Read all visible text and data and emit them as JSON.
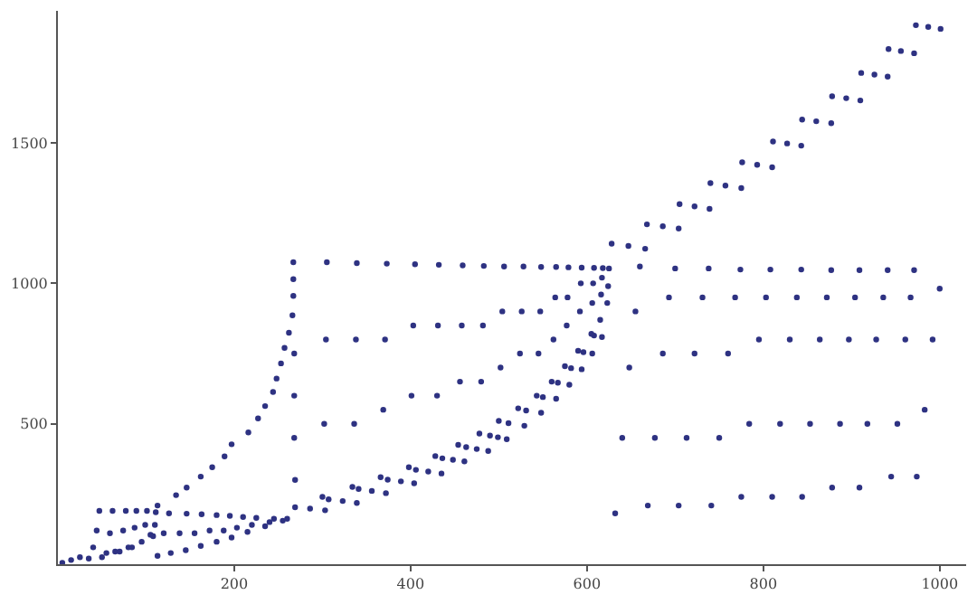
{
  "chart_data": {
    "type": "scatter",
    "marker": "circle",
    "xlim": [
      0,
      1030
    ],
    "ylim": [
      0,
      1970
    ],
    "xticks": [
      200,
      400,
      600,
      800,
      1000
    ],
    "yticks": [
      500,
      1000,
      1500
    ],
    "series": [
      {
        "color": "#2e3282",
        "x": [
          628,
          647,
          666,
          668,
          686,
          704,
          705,
          722,
          739,
          740,
          757,
          775,
          776,
          793,
          810,
          811,
          827,
          843,
          844,
          860,
          877,
          878,
          894,
          910,
          911,
          926,
          941,
          942,
          956,
          971,
          973,
          987,
          1001
        ],
        "values": [
          1141,
          1133,
          1123,
          1210,
          1203,
          1195,
          1282,
          1274,
          1265,
          1357,
          1348,
          1339,
          1431,
          1422,
          1413,
          1505,
          1498,
          1490,
          1583,
          1577,
          1570,
          1666,
          1659,
          1651,
          1749,
          1743,
          1736,
          1834,
          1827,
          1819,
          1919,
          1913,
          1906
        ]
      },
      {
        "color": "#2e3282",
        "x": [
          269,
          286,
          303,
          307,
          323,
          339,
          341,
          356,
          372,
          374,
          389,
          404,
          406,
          420,
          435,
          436,
          448,
          461,
          463,
          475,
          488,
          490,
          499,
          509,
          511,
          529,
          531,
          548,
          550,
          565,
          567,
          580,
          582,
          594,
          596,
          606,
          608,
          617
        ],
        "values": [
          203,
          198,
          192,
          231,
          225,
          218,
          268,
          261,
          253,
          301,
          295,
          288,
          336,
          330,
          323,
          377,
          372,
          366,
          417,
          410,
          403,
          458,
          452,
          445,
          502,
          493,
          547,
          539,
          595,
          589,
          646,
          639,
          698,
          694,
          755,
          750,
          814,
          809
        ]
      },
      {
        "color": "#2e3282",
        "x": [
          5,
          15,
          25,
          35,
          50,
          65,
          80,
          95,
          105,
          110,
          113,
          134,
          146,
          162,
          175,
          189,
          197,
          216,
          227,
          235,
          244,
          248,
          253,
          257,
          262,
          266,
          267,
          267,
          267
        ],
        "values": [
          5,
          15,
          25,
          20,
          25,
          45,
          60,
          80,
          105,
          140,
          209,
          246,
          273,
          312,
          345,
          384,
          427,
          469,
          519,
          563,
          613,
          661,
          715,
          770,
          824,
          886,
          955,
          1015,
          1075
        ]
      },
      {
        "color": "#2e3282",
        "x": [
          269,
          268,
          268,
          268,
          300,
          302,
          304,
          305,
          334,
          336,
          338,
          339,
          366,
          369,
          371,
          373,
          398,
          401,
          403,
          405,
          428,
          430,
          431,
          432,
          454,
          456,
          458,
          459,
          478,
          480,
          482,
          483,
          500,
          502,
          504,
          506,
          522,
          524,
          526,
          528,
          543,
          545,
          547,
          548,
          560,
          562,
          564,
          565,
          575,
          577,
          578,
          579,
          590,
          592,
          593,
          594,
          605,
          606,
          607,
          608,
          615,
          616,
          617,
          618,
          623,
          624,
          625
        ],
        "values": [
          300,
          450,
          600,
          750,
          240,
          500,
          800,
          1075,
          275,
          500,
          800,
          1072,
          310,
          550,
          800,
          1070,
          345,
          600,
          850,
          1068,
          385,
          600,
          850,
          1066,
          425,
          650,
          850,
          1064,
          465,
          650,
          850,
          1062,
          510,
          700,
          900,
          1060,
          555,
          750,
          900,
          1060,
          600,
          750,
          900,
          1058,
          650,
          800,
          950,
          1058,
          705,
          850,
          950,
          1057,
          760,
          900,
          1000,
          1056,
          820,
          930,
          1000,
          1055,
          870,
          960,
          1020,
          1054,
          930,
          990,
          1053
        ]
      },
      {
        "color": "#2e3282",
        "x": [
          632,
          640,
          648,
          655,
          660,
          669,
          677,
          686,
          693,
          700,
          704,
          713,
          722,
          731,
          738,
          741,
          750,
          760,
          768,
          774,
          775,
          784,
          795,
          803,
          808,
          810,
          819,
          830,
          838,
          843,
          844,
          853,
          864,
          872,
          877,
          878,
          887,
          897,
          904,
          909,
          909,
          918,
          928,
          936,
          941,
          945,
          952,
          961,
          967,
          971,
          974,
          983,
          992,
          1000
        ],
        "values": [
          181,
          450,
          700,
          900,
          1060,
          209,
          450,
          750,
          950,
          1053,
          209,
          450,
          750,
          950,
          1053,
          209,
          450,
          750,
          950,
          1049,
          240,
          500,
          800,
          950,
          1049,
          240,
          500,
          800,
          950,
          1049,
          240,
          500,
          800,
          950,
          1047,
          273,
          500,
          800,
          950,
          1047,
          273,
          500,
          800,
          950,
          1047,
          312,
          500,
          800,
          950,
          1047,
          312,
          550,
          800,
          981
        ]
      },
      {
        "color": "#2e3282",
        "x": [
          40,
          44,
          47,
          55,
          59,
          62,
          70,
          74,
          77,
          84,
          87,
          89,
          99,
          101,
          108,
          111,
          113,
          120,
          126,
          128,
          138,
          146,
          145,
          155,
          163,
          162,
          172,
          180,
          180,
          188,
          195,
          197,
          203,
          210,
          215,
          220,
          225,
          235,
          240,
          245,
          255,
          260
        ],
        "values": [
          60,
          120,
          190,
          40,
          110,
          190,
          45,
          120,
          190,
          60,
          130,
          190,
          140,
          190,
          100,
          185,
          30,
          110,
          181,
          40,
          110,
          180,
          50,
          110,
          178,
          65,
          120,
          175,
          80,
          120,
          172,
          95,
          130,
          168,
          115,
          140,
          165,
          135,
          150,
          162,
          155,
          162
        ]
      }
    ]
  }
}
